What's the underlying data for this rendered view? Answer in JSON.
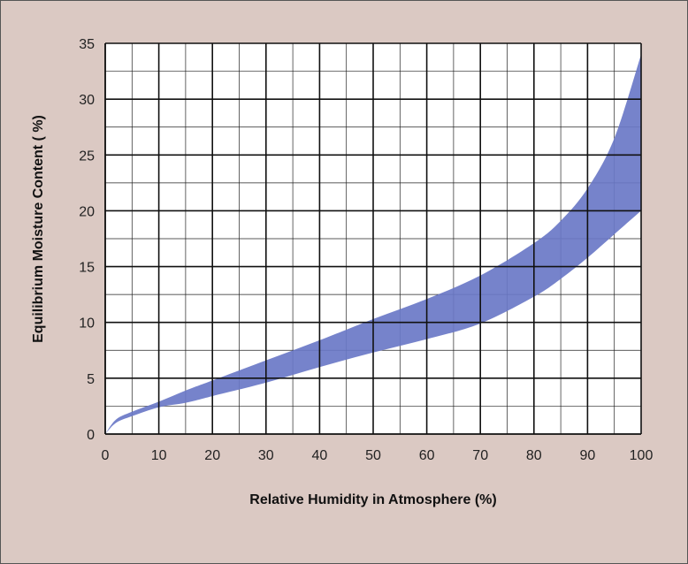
{
  "chart_data": {
    "type": "area",
    "title": "",
    "xlabel": "Relative Humidity in Atmosphere (%)",
    "ylabel": "Equilibrium Moisture Content ( %)",
    "xlim": [
      0,
      100
    ],
    "ylim": [
      0,
      35
    ],
    "x_ticks": [
      "0",
      "10",
      "20",
      "30",
      "40",
      "50",
      "60",
      "70",
      "80",
      "90",
      "100"
    ],
    "y_ticks": [
      "0",
      "5",
      "10",
      "15",
      "20",
      "25",
      "30",
      "35"
    ],
    "grid": true,
    "band_color": "#6a78c7",
    "series": [
      {
        "x": [
          0,
          2,
          5,
          10,
          15,
          20,
          30,
          40,
          50,
          60,
          70,
          80,
          85,
          90,
          95,
          100
        ],
        "upper": [
          0,
          1.3,
          2.0,
          2.9,
          3.9,
          4.8,
          6.6,
          8.4,
          10.3,
          12.1,
          14.2,
          17.1,
          19.1,
          22.0,
          26.5,
          34.0
        ],
        "lower": [
          0,
          1.0,
          1.6,
          2.4,
          2.8,
          3.4,
          4.6,
          6.0,
          7.3,
          8.5,
          9.9,
          12.3,
          13.9,
          15.8,
          17.9,
          20.0
        ]
      }
    ]
  }
}
